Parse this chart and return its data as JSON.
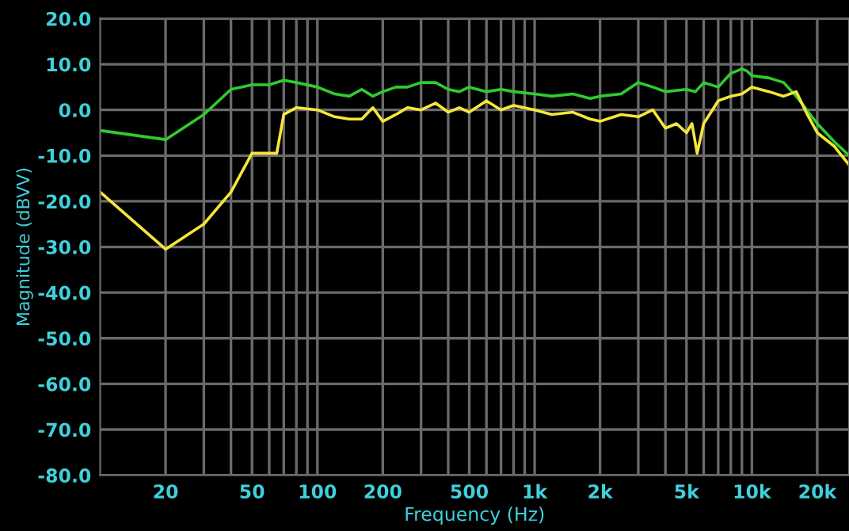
{
  "chart_data": {
    "type": "line",
    "xlabel": "Frequency (Hz)",
    "ylabel": "Magnitude (dBVV)",
    "log": "x",
    "grid": true,
    "xlim": [
      10,
      28000
    ],
    "ylim": [
      -80,
      20
    ],
    "xticks": [
      20,
      50,
      100,
      200,
      500,
      {
        "value": 1000,
        "label": "1k"
      },
      {
        "value": 2000,
        "label": "2k"
      },
      {
        "value": 5000,
        "label": "5k"
      },
      {
        "value": 10000,
        "label": "10k"
      },
      {
        "value": 20000,
        "label": "20k"
      }
    ],
    "yticks": [
      {
        "value": -80,
        "label": "-80.0"
      },
      {
        "value": -70,
        "label": "-70.0"
      },
      {
        "value": -60,
        "label": "-60.0"
      },
      {
        "value": -50,
        "label": "-50.0"
      },
      {
        "value": -40,
        "label": "-40.0"
      },
      {
        "value": -30,
        "label": "-30.0"
      },
      {
        "value": -20,
        "label": "-20.0"
      },
      {
        "value": -10,
        "label": "-10.0"
      },
      {
        "value": 0,
        "label": "0.0"
      },
      {
        "value": 10,
        "label": "10.0"
      },
      {
        "value": 20,
        "label": "20.0"
      }
    ],
    "series": [
      {
        "color": "#2ecc2e",
        "x": [
          10,
          20,
          30,
          40,
          50,
          60,
          70,
          80,
          100,
          120,
          140,
          160,
          180,
          200,
          230,
          260,
          300,
          350,
          400,
          450,
          500,
          600,
          700,
          800,
          1000,
          1200,
          1500,
          1800,
          2000,
          2500,
          3000,
          3500,
          4000,
          5000,
          5500,
          6000,
          7000,
          8000,
          9000,
          9500,
          10000,
          12000,
          14000,
          16000,
          20000,
          24000,
          28000
        ],
        "values": [
          -4.5,
          -6.5,
          -1,
          4.5,
          5.5,
          5.5,
          6.5,
          6,
          5,
          3.5,
          3,
          4.5,
          3,
          4,
          5,
          5,
          6,
          6,
          4.5,
          4,
          5,
          4,
          4.5,
          4,
          3.5,
          3,
          3.5,
          2.5,
          3,
          3.5,
          6,
          5,
          4,
          4.5,
          4,
          6,
          5,
          8,
          9,
          8.5,
          7.5,
          7,
          6,
          3,
          -3,
          -7,
          -10
        ]
      },
      {
        "color": "#f5e63a",
        "x": [
          10,
          20,
          30,
          40,
          50,
          55,
          65,
          70,
          80,
          100,
          120,
          140,
          160,
          180,
          200,
          230,
          260,
          300,
          350,
          400,
          450,
          500,
          600,
          700,
          800,
          1000,
          1200,
          1500,
          1800,
          2000,
          2500,
          3000,
          3500,
          4000,
          4500,
          5000,
          5300,
          5600,
          6000,
          7000,
          8000,
          9000,
          10000,
          12000,
          14000,
          16000,
          18000,
          20000,
          24000,
          28000
        ],
        "values": [
          -18,
          -30.5,
          -25,
          -18,
          -9.5,
          -9.5,
          -9.5,
          -1,
          0.5,
          0,
          -1.5,
          -2,
          -2,
          0.5,
          -2.5,
          -1,
          0.5,
          0,
          1.5,
          -0.5,
          0.5,
          -0.5,
          2,
          0,
          1,
          0,
          -1,
          -0.5,
          -2,
          -2.5,
          -1,
          -1.5,
          0,
          -4,
          -3,
          -5,
          -3,
          -9.5,
          -3,
          2,
          3,
          3.5,
          5,
          4,
          3,
          4,
          -1,
          -5,
          -8,
          -12
        ]
      }
    ]
  }
}
